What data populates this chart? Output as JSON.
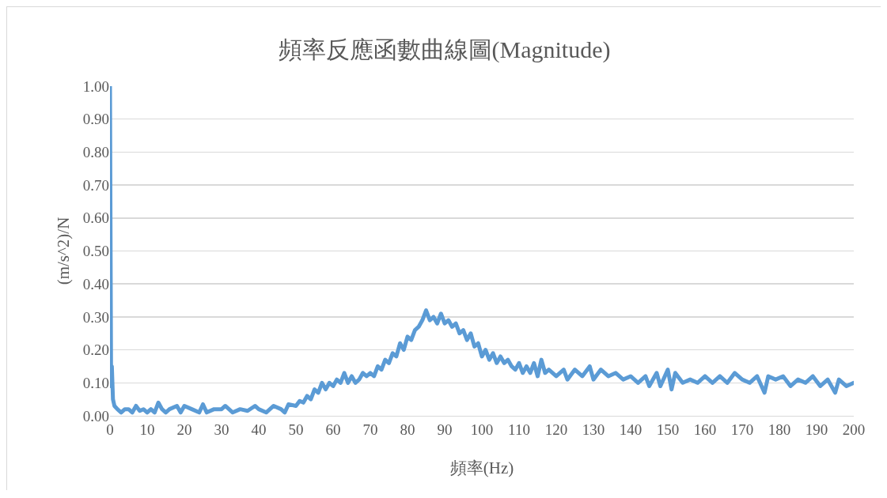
{
  "chart_data": {
    "type": "line",
    "title": "頻率反應函數曲線圖(Magnitude)",
    "xlabel": "頻率(Hz)",
    "ylabel": "(m/s^2)/N",
    "x": [
      0,
      0.3,
      0.5,
      0.8,
      1.2,
      2,
      3,
      4,
      5,
      6,
      7,
      8,
      9,
      10,
      11,
      12,
      13,
      14,
      15,
      16,
      18,
      19,
      20,
      22,
      24,
      25,
      26,
      28,
      30,
      31,
      33,
      35,
      37,
      39,
      40,
      42,
      44,
      46,
      47,
      48,
      50,
      51,
      52,
      53,
      54,
      55,
      56,
      57,
      58,
      59,
      60,
      61,
      62,
      63,
      64,
      65,
      66,
      67,
      68,
      69,
      70,
      71,
      72,
      73,
      74,
      75,
      76,
      77,
      78,
      79,
      80,
      81,
      82,
      83,
      84,
      85,
      86,
      87,
      88,
      89,
      90,
      91,
      92,
      93,
      94,
      95,
      96,
      97,
      98,
      99,
      100,
      101,
      102,
      103,
      104,
      105,
      106,
      107,
      108,
      109,
      110,
      111,
      112,
      113,
      114,
      115,
      116,
      117,
      118,
      120,
      122,
      123,
      125,
      127,
      129,
      130,
      132,
      134,
      136,
      138,
      140,
      142,
      144,
      145,
      147,
      148,
      150,
      151,
      152,
      154,
      156,
      158,
      160,
      162,
      164,
      166,
      168,
      170,
      172,
      174,
      176,
      177,
      179,
      181,
      183,
      185,
      187,
      189,
      191,
      193,
      195,
      196,
      198,
      200
    ],
    "series": [
      {
        "color": "#5b9bd5",
        "values": [
          1.0,
          0.09,
          0.15,
          0.05,
          0.03,
          0.02,
          0.01,
          0.02,
          0.02,
          0.01,
          0.03,
          0.015,
          0.02,
          0.01,
          0.02,
          0.01,
          0.04,
          0.02,
          0.01,
          0.02,
          0.03,
          0.01,
          0.03,
          0.02,
          0.01,
          0.035,
          0.01,
          0.02,
          0.02,
          0.03,
          0.01,
          0.02,
          0.015,
          0.03,
          0.02,
          0.01,
          0.03,
          0.02,
          0.01,
          0.035,
          0.03,
          0.045,
          0.04,
          0.06,
          0.05,
          0.08,
          0.07,
          0.1,
          0.08,
          0.1,
          0.09,
          0.11,
          0.1,
          0.13,
          0.1,
          0.12,
          0.1,
          0.11,
          0.13,
          0.12,
          0.13,
          0.12,
          0.15,
          0.14,
          0.17,
          0.16,
          0.19,
          0.18,
          0.22,
          0.2,
          0.24,
          0.23,
          0.26,
          0.27,
          0.29,
          0.32,
          0.29,
          0.3,
          0.28,
          0.31,
          0.28,
          0.29,
          0.27,
          0.28,
          0.25,
          0.26,
          0.23,
          0.25,
          0.21,
          0.22,
          0.18,
          0.2,
          0.17,
          0.19,
          0.16,
          0.18,
          0.16,
          0.17,
          0.15,
          0.14,
          0.16,
          0.13,
          0.15,
          0.13,
          0.16,
          0.12,
          0.17,
          0.13,
          0.14,
          0.12,
          0.14,
          0.11,
          0.14,
          0.12,
          0.15,
          0.11,
          0.14,
          0.12,
          0.13,
          0.11,
          0.12,
          0.1,
          0.12,
          0.09,
          0.13,
          0.09,
          0.14,
          0.08,
          0.13,
          0.1,
          0.11,
          0.1,
          0.12,
          0.1,
          0.12,
          0.1,
          0.13,
          0.11,
          0.1,
          0.12,
          0.07,
          0.12,
          0.11,
          0.12,
          0.09,
          0.11,
          0.1,
          0.12,
          0.09,
          0.11,
          0.07,
          0.11,
          0.09,
          0.1
        ]
      }
    ],
    "xlim": [
      0,
      200
    ],
    "xticks": [
      0,
      10,
      20,
      30,
      40,
      50,
      60,
      70,
      80,
      90,
      100,
      110,
      120,
      130,
      140,
      150,
      160,
      170,
      180,
      190,
      200
    ],
    "ylim": [
      0,
      1
    ],
    "yticks": [
      {
        "value": 0,
        "label": "0.00"
      },
      {
        "value": 0.1,
        "label": "0.10"
      },
      {
        "value": 0.2,
        "label": "0.20"
      },
      {
        "value": 0.3,
        "label": "0.30"
      },
      {
        "value": 0.4,
        "label": "0.40"
      },
      {
        "value": 0.5,
        "label": "0.50"
      },
      {
        "value": 0.6,
        "label": "0.60"
      },
      {
        "value": 0.7,
        "label": "0.70"
      },
      {
        "value": 0.8,
        "label": "0.80"
      },
      {
        "value": 0.9,
        "label": "0.90"
      },
      {
        "value": 1,
        "label": "1.00"
      }
    ],
    "grid": "y",
    "marker": "none",
    "line_style": "solid"
  }
}
